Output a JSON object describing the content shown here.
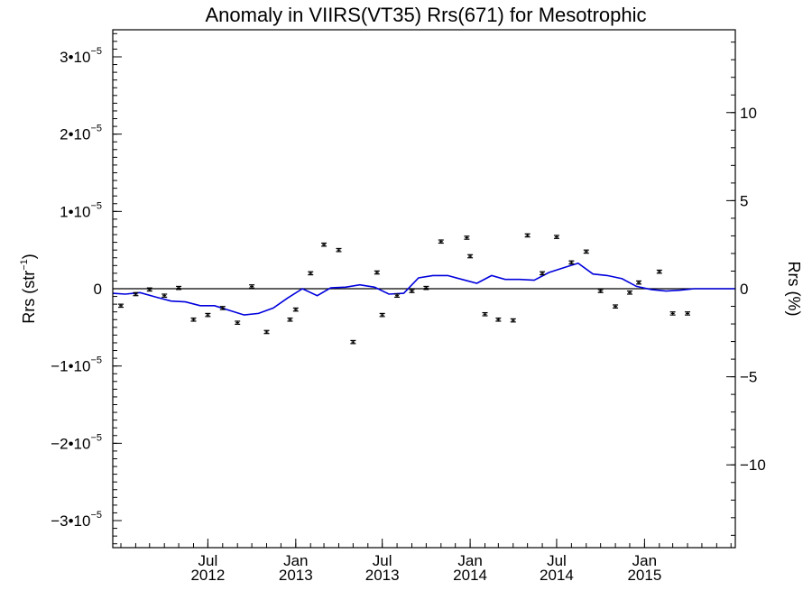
{
  "chart_data": {
    "type": "scatter",
    "title": "Anomaly in VIIRS(VT35) Rrs(671) for Mesotrophic",
    "ylabel": {
      "text": "Rrs (str",
      "superscript": "−1",
      "suffix": ")"
    },
    "y2label": "Rrs (%)",
    "xlim": [
      "2011-12-15",
      "2015-07-10"
    ],
    "ylim": [
      -3.35e-05,
      3.35e-05
    ],
    "y2lim": [
      -14.7,
      14.7
    ],
    "grid": false,
    "legend": "none",
    "colors": {
      "points": "#000000",
      "line": "#0000dd",
      "zero_line": "#000000"
    },
    "left_ticks": [
      {
        "value": 3e-05,
        "mantissa": "3•10",
        "exp": "−5"
      },
      {
        "value": 2e-05,
        "mantissa": "2•10",
        "exp": "−5"
      },
      {
        "value": 1e-05,
        "mantissa": "1•10",
        "exp": "−5"
      },
      {
        "value": 0,
        "mantissa": "0",
        "exp": ""
      },
      {
        "value": -1e-05,
        "mantissa": "−1•10",
        "exp": "−5"
      },
      {
        "value": -2e-05,
        "mantissa": "−2•10",
        "exp": "−5"
      },
      {
        "value": -3e-05,
        "mantissa": "−3•10",
        "exp": "−5"
      }
    ],
    "right_ticks": [
      {
        "value": 10,
        "label": "10"
      },
      {
        "value": 5,
        "label": "5"
      },
      {
        "value": 0,
        "label": "0"
      },
      {
        "value": -5,
        "label": "−5"
      },
      {
        "value": -10,
        "label": "−10"
      }
    ],
    "x_ticks": [
      {
        "date": "2012-07-01",
        "line1": "Jul",
        "line2": "2012"
      },
      {
        "date": "2013-01-01",
        "line1": "Jan",
        "line2": "2013"
      },
      {
        "date": "2013-07-01",
        "line1": "Jul",
        "line2": "2013"
      },
      {
        "date": "2014-01-01",
        "line1": "Jan",
        "line2": "2014"
      },
      {
        "date": "2014-07-01",
        "line1": "Jul",
        "line2": "2014"
      },
      {
        "date": "2015-01-01",
        "line1": "Jan",
        "line2": "2015"
      }
    ],
    "series": [
      {
        "type": "scatter_errorbar",
        "x": [
          "2012-01-01",
          "2012-02-01",
          "2012-03-01",
          "2012-04-01",
          "2012-05-01",
          "2012-06-01",
          "2012-07-01",
          "2012-08-01",
          "2012-09-01",
          "2012-10-01",
          "2012-11-01",
          "2012-12-20",
          "2013-01-01",
          "2013-02-01",
          "2013-03-01",
          "2013-04-01",
          "2013-05-01",
          "2013-06-20",
          "2013-07-01",
          "2013-08-01",
          "2013-09-01",
          "2013-10-01",
          "2013-11-01",
          "2013-12-25",
          "2014-01-01",
          "2014-02-01",
          "2014-03-01",
          "2014-04-01",
          "2014-05-01",
          "2014-06-01",
          "2014-07-01",
          "2014-08-01",
          "2014-09-01",
          "2014-10-01",
          "2014-11-01",
          "2014-12-01",
          "2014-12-20",
          "2015-02-01",
          "2015-03-01",
          "2015-04-01"
        ],
        "y": [
          -2.2e-06,
          -7e-07,
          -1e-07,
          -9e-07,
          1e-07,
          -4e-06,
          -3.4e-06,
          -2.5e-06,
          -4.4e-06,
          3e-07,
          -5.6e-06,
          -4e-06,
          -2.7e-06,
          2e-06,
          5.7e-06,
          5e-06,
          -6.9e-06,
          2.1e-06,
          -3.4e-06,
          -9e-07,
          -3e-07,
          1e-07,
          6.1e-06,
          6.6e-06,
          4.2e-06,
          -3.3e-06,
          -4e-06,
          -4.1e-06,
          6.9e-06,
          2e-06,
          6.7e-06,
          3.4e-06,
          4.8e-06,
          -3e-07,
          -2.3e-06,
          -5e-07,
          8e-07,
          2.2e-06,
          -3.2e-06,
          -3.2e-06
        ],
        "yerr": 2e-07
      },
      {
        "type": "line",
        "x": [
          "2011-12-15",
          "2012-01-10",
          "2012-02-10",
          "2012-03-15",
          "2012-04-15",
          "2012-05-15",
          "2012-06-15",
          "2012-07-15",
          "2012-08-15",
          "2012-09-15",
          "2012-10-15",
          "2012-11-15",
          "2012-12-15",
          "2013-01-15",
          "2013-02-15",
          "2013-03-15",
          "2013-04-15",
          "2013-05-15",
          "2013-06-15",
          "2013-07-15",
          "2013-08-15",
          "2013-09-15",
          "2013-10-15",
          "2013-11-15",
          "2013-12-15",
          "2014-01-15",
          "2014-02-15",
          "2014-03-15",
          "2014-04-15",
          "2014-05-15",
          "2014-06-15",
          "2014-07-15",
          "2014-08-15",
          "2014-09-15",
          "2014-10-15",
          "2014-11-15",
          "2014-12-15",
          "2015-01-15",
          "2015-02-15",
          "2015-03-15",
          "2015-04-15",
          "2015-05-15",
          "2015-07-10"
        ],
        "y": [
          -6e-07,
          -7e-07,
          -5e-07,
          -1.1e-06,
          -1.6e-06,
          -1.7e-06,
          -2.2e-06,
          -2.2e-06,
          -2.8e-06,
          -3.4e-06,
          -3.2e-06,
          -2.5e-06,
          -1.2e-06,
          0,
          -9e-07,
          1e-07,
          2e-07,
          5e-07,
          2e-07,
          -7e-07,
          -6e-07,
          1.4e-06,
          1.7e-06,
          1.7e-06,
          1.2e-06,
          7e-07,
          1.7e-06,
          1.2e-06,
          1.2e-06,
          1.1e-06,
          2.1e-06,
          2.7e-06,
          3.3e-06,
          1.9e-06,
          1.7e-06,
          1.3e-06,
          3e-07,
          -1e-07,
          -3e-07,
          -2e-07,
          0,
          0,
          0
        ]
      }
    ]
  }
}
